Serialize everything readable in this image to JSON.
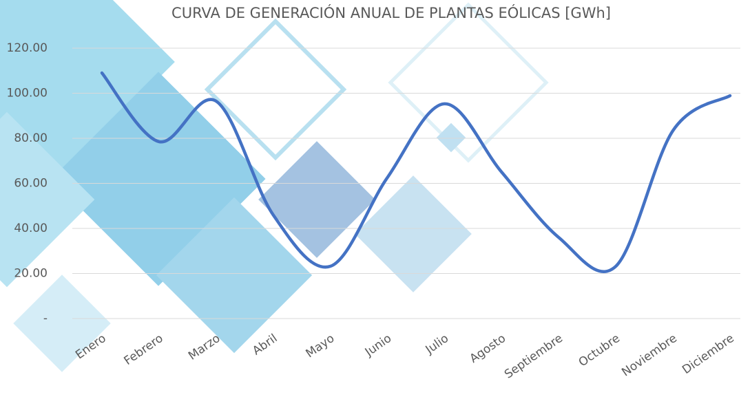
{
  "chart_data": {
    "type": "line",
    "title": "CURVA DE GENERACIÓN ANUAL DE PLANTAS EÓLICAS [GWh]",
    "categories": [
      "Enero",
      "Febrero",
      "Marzo",
      "Abril",
      "Mayo",
      "Junio",
      "Julio",
      "Agosto",
      "Septiembre",
      "Octubre",
      "Noviembre",
      "Diciembre"
    ],
    "series": [
      {
        "color": "#4472c4",
        "values": [
          109,
          78.5,
          96.5,
          46,
          23.2,
          62.6,
          95.3,
          65,
          36,
          23.2,
          83.4,
          98.9
        ]
      }
    ],
    "ylim": [
      0,
      120
    ],
    "yticks": [
      {
        "value": 0,
        "label": "-"
      },
      {
        "value": 20,
        "label": "20.00"
      },
      {
        "value": 40,
        "label": "40.00"
      },
      {
        "value": 60,
        "label": "60.00"
      },
      {
        "value": 80,
        "label": "80.00"
      },
      {
        "value": 100,
        "label": "100.00"
      },
      {
        "value": 120,
        "label": "120.00"
      }
    ],
    "grid": true,
    "smooth": true
  }
}
